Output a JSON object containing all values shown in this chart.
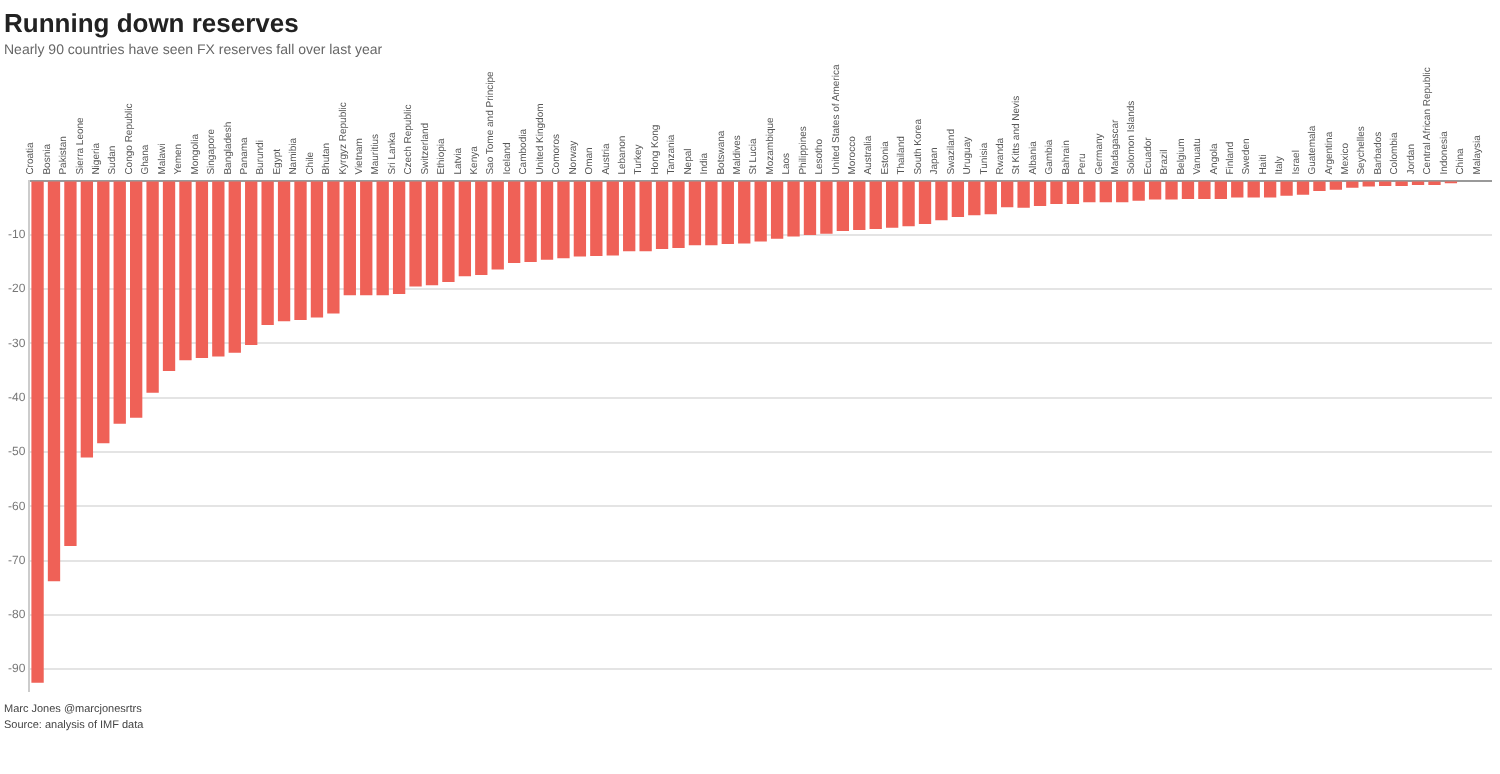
{
  "chart_data": {
    "type": "bar",
    "title": "Running down reserves",
    "subtitle": "Nearly 90 countries have seen FX reserves fall over last year",
    "categories": [
      "Croatia",
      "Bosnia",
      "Pakistan",
      "Sierra Leone",
      "Nigeria",
      "Sudan",
      "Congo Republic",
      "Ghana",
      "Malawi",
      "Yemen",
      "Mongolia",
      "Singapore",
      "Bangladesh",
      "Panama",
      "Burundi",
      "Egypt",
      "Namibia",
      "Chile",
      "Bhutan",
      "Kyrgyz Republic",
      "Vietnam",
      "Mauritius",
      "Sri Lanka",
      "Czech Republic",
      "Switzerland",
      "Ethiopia",
      "Latvia",
      "Kenya",
      "Sao Tome and Principe",
      "Iceland",
      "Cambodia",
      "United Kingdom",
      "Comoros",
      "Norway",
      "Oman",
      "Austria",
      "Lebanon",
      "Turkey",
      "Hong Kong",
      "Tanzania",
      "Nepal",
      "India",
      "Botswana",
      "Maldives",
      "St Lucia",
      "Mozambique",
      "Laos",
      "Philippines",
      "Lesotho",
      "United States of America",
      "Morocco",
      "Australia",
      "Estonia",
      "Thailand",
      "South Korea",
      "Japan",
      "Swaziland",
      "Uruguay",
      "Tunisia",
      "Rwanda",
      "St Kitts and Nevis",
      "Albania",
      "Gambia",
      "Bahrain",
      "Peru",
      "Germany",
      "Madagascar",
      "Solomon Islands",
      "Ecuador",
      "Brazil",
      "Belgium",
      "Vanuatu",
      "Angola",
      "Finland",
      "Sweden",
      "Haiti",
      "Italy",
      "Israel",
      "Guatemala",
      "Argentina",
      "Mexico",
      "Seychelles",
      "Barbados",
      "Colombia",
      "Jordan",
      "Central African Republic",
      "Indonesia",
      "China",
      "Malaysia"
    ],
    "values": [
      -92.5,
      -73.8,
      -67.3,
      -51,
      -48.4,
      -44.8,
      -43.7,
      -39.1,
      -35.1,
      -33.1,
      -32.7,
      -32.4,
      -31.7,
      -30.3,
      -26.6,
      -25.9,
      -25.7,
      -25.2,
      -24.5,
      -21.1,
      -21.1,
      -21.1,
      -20.9,
      -19.5,
      -19.3,
      -18.7,
      -17.6,
      -17.4,
      -16.4,
      -15.2,
      -15,
      -14.6,
      -14.3,
      -14,
      -13.9,
      -13.8,
      -13,
      -13,
      -12.6,
      -12.4,
      -11.9,
      -11.9,
      -11.7,
      -11.6,
      -11.2,
      -10.7,
      -10.3,
      -10,
      -9.8,
      -9.3,
      -9.1,
      -8.9,
      -8.7,
      -8.4,
      -8,
      -7.3,
      -6.7,
      -6.4,
      -6.2,
      -4.9,
      -5,
      -4.7,
      -4.3,
      -4.3,
      -4,
      -4,
      -4,
      -3.7,
      -3.5,
      -3.5,
      -3.4,
      -3.4,
      -3.4,
      -3.1,
      -3.1,
      -3.1,
      -2.8,
      -2.6,
      -1.9,
      -1.7,
      -1.3,
      -1.1,
      -1,
      -1,
      -0.8,
      -0.8,
      -0.5,
      0,
      0
    ],
    "color": "#ef6157",
    "ylim": [
      -94,
      0
    ],
    "yticks": [
      -90,
      -80,
      -70,
      -60,
      -50,
      -40,
      -30,
      -20,
      -10,
      {
        "value": 0,
        "label": null
      }
    ],
    "grid": "y",
    "annotations": [
      "Marc Jones @marcjonesrtrs",
      "Source: analysis of IMF data"
    ]
  }
}
